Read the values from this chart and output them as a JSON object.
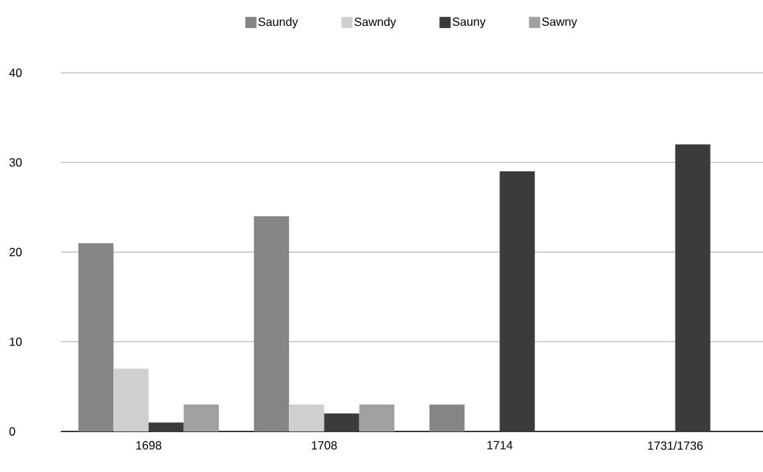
{
  "chart_data": {
    "type": "bar",
    "categories": [
      "1698",
      "1708",
      "1714",
      "1731/1736"
    ],
    "series": [
      {
        "name": "Saundy",
        "color": "#858585",
        "values": [
          21,
          24,
          3,
          null
        ]
      },
      {
        "name": "Sawndy",
        "color": "#cfcfcf",
        "values": [
          7,
          3,
          null,
          null
        ]
      },
      {
        "name": "Sauny",
        "color": "#3b3b3b",
        "values": [
          1,
          2,
          29,
          32
        ]
      },
      {
        "name": "Sawny",
        "color": "#a0a0a0",
        "values": [
          3,
          3,
          null,
          null
        ]
      }
    ],
    "ylim": [
      0,
      40
    ],
    "yticks": [
      0,
      10,
      20,
      30,
      40
    ],
    "grid": "y",
    "legend": "top"
  }
}
